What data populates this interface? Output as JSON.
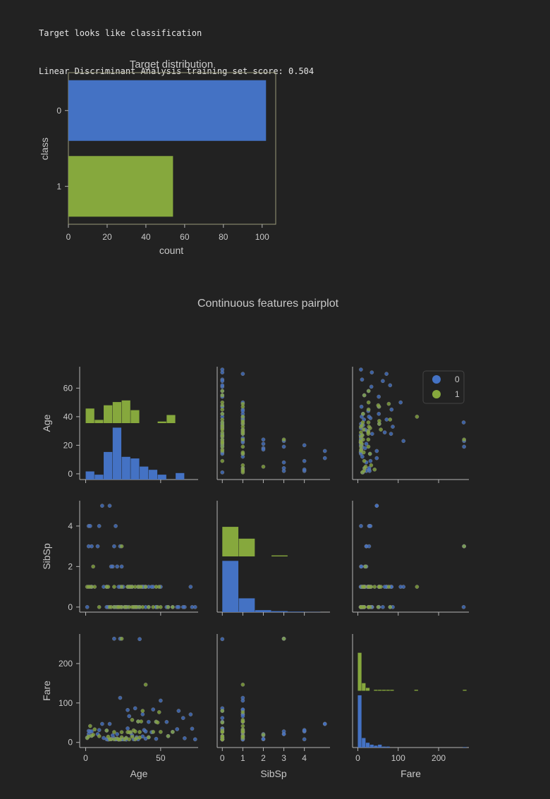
{
  "console": {
    "line1": "Target looks like classification",
    "line2": "Linear Discriminant Analysis training set score: 0.504"
  },
  "colors": {
    "class0": "#4472c4",
    "class1": "#86a83d",
    "axis": "#b4b4b4",
    "text": "#c8c8c8",
    "frame": "#9a9a7a",
    "background": "#222222"
  },
  "chart_data": [
    {
      "type": "bar",
      "orientation": "horizontal",
      "title": "Target distribution",
      "xlabel": "count",
      "ylabel": "class",
      "categories": [
        "0",
        "1"
      ],
      "values": [
        102,
        54
      ],
      "xlim": [
        0,
        107
      ],
      "xticks": [
        0,
        20,
        40,
        60,
        80,
        100
      ],
      "grid": false
    },
    {
      "type": "scatter",
      "title": "Continuous features pairplot",
      "variables": [
        "Age",
        "SibSp",
        "Fare"
      ],
      "legend": {
        "placement": "top-right",
        "entries": [
          "0",
          "1"
        ]
      },
      "ticks": {
        "Age": [
          0,
          20,
          40,
          60
        ],
        "Age_x": [
          0,
          50
        ],
        "SibSp": [
          0,
          2,
          4
        ],
        "SibSp_x": [
          0,
          1,
          2,
          3,
          4
        ],
        "Fare": [
          0,
          100,
          200
        ],
        "Fare_x": [
          0,
          100,
          200
        ]
      },
      "ranges": {
        "Age": [
          -4,
          75
        ],
        "SibSp": [
          -0.25,
          5.25
        ],
        "Fare": [
          -13,
          275
        ]
      },
      "histograms": {
        "Age": {
          "series": [
            {
              "name": "0",
              "edges": [
                0,
                6,
                12,
                18,
                24,
                30,
                36,
                42,
                48,
                54,
                60,
                66,
                72
              ],
              "counts": [
                5,
                3,
                17,
                32,
                14,
                13,
                8,
                6,
                3,
                0,
                4,
                0
              ]
            },
            {
              "name": "1",
              "edges": [
                0,
                6,
                12,
                18,
                24,
                30,
                36,
                42,
                48,
                54,
                60
              ],
              "counts": [
                9,
                2,
                11,
                13,
                14,
                8,
                0,
                0,
                1,
                5
              ]
            }
          ]
        },
        "SibSp": {
          "series": [
            {
              "name": "0",
              "edges": [
                0,
                0.8,
                1.6,
                2.4,
                3.2,
                4.0,
                4.8
              ],
              "counts": [
                52,
                14,
                2,
                1,
                0.5,
                0.2
              ]
            },
            {
              "name": "1",
              "edges": [
                0,
                0.8,
                1.6,
                2.4,
                3.2,
                4.0,
                4.8
              ],
              "counts": [
                30,
                18,
                0,
                1,
                0,
                0
              ]
            }
          ]
        },
        "Fare": {
          "series": [
            {
              "name": "0",
              "edges": [
                0,
                10,
                20,
                30,
                40,
                50,
                60,
                70,
                80,
                90,
                100,
                110,
                120,
                130,
                140,
                150,
                160,
                170,
                180,
                190,
                200,
                210,
                220,
                230,
                240,
                250,
                260,
                270
              ],
              "counts": [
                55,
                10,
                5,
                3,
                2,
                3,
                1,
                1,
                0,
                0,
                0,
                0,
                0,
                0,
                0,
                0,
                0,
                0,
                0,
                0,
                0,
                0,
                0,
                0,
                0,
                0,
                0.5
              ]
            },
            {
              "name": "1",
              "edges": [
                0,
                10,
                20,
                30,
                40,
                50,
                60,
                70,
                80,
                90,
                100,
                110,
                120,
                130,
                140,
                150,
                160,
                170,
                180,
                190,
                200,
                210,
                220,
                230,
                240,
                250,
                260,
                270
              ],
              "counts": [
                40,
                8,
                3,
                0,
                1,
                1,
                1,
                1,
                1,
                0,
                0,
                0,
                0,
                0,
                1,
                0,
                0,
                0,
                0,
                0,
                0,
                0,
                0,
                0,
                0,
                0,
                1
              ]
            }
          ]
        }
      },
      "points": {
        "0": [
          [
            22,
            1,
            7.25
          ],
          [
            38,
            1,
            71.3
          ],
          [
            26,
            0,
            7.9
          ],
          [
            35,
            1,
            53.1
          ],
          [
            35,
            0,
            8.05
          ],
          [
            54,
            0,
            51.9
          ],
          [
            2,
            3,
            21.1
          ],
          [
            27,
            0,
            11.1
          ],
          [
            14,
            1,
            30.1
          ],
          [
            4,
            1,
            16.7
          ],
          [
            58,
            0,
            26.6
          ],
          [
            20,
            0,
            8.05
          ],
          [
            39,
            1,
            31.3
          ],
          [
            14,
            0,
            7.85
          ],
          [
            55,
            0,
            16
          ],
          [
            2,
            4,
            29.1
          ],
          [
            31,
            1,
            18
          ],
          [
            15,
            0,
            7.2
          ],
          [
            34,
            0,
            13
          ],
          [
            28,
            0,
            35.5
          ],
          [
            8,
            3,
            21.1
          ],
          [
            38,
            1,
            15.2
          ],
          [
            19,
            3,
            263
          ],
          [
            40,
            0,
            27.7
          ],
          [
            66,
            0,
            10.5
          ],
          [
            28,
            1,
            82.2
          ],
          [
            42,
            1,
            52
          ],
          [
            21,
            0,
            8.05
          ],
          [
            18,
            2,
            18
          ],
          [
            40,
            1,
            9.5
          ],
          [
            27,
            0,
            7.2
          ],
          [
            3,
            4,
            27.9
          ],
          [
            19,
            0,
            10.5
          ],
          [
            21,
            2,
            21
          ],
          [
            45,
            1,
            83.5
          ],
          [
            4,
            3,
            27.9
          ],
          [
            32,
            0,
            7.9
          ],
          [
            47,
            0,
            9
          ],
          [
            23,
            3,
            263
          ],
          [
            24,
            0,
            7.9
          ],
          [
            65,
            0,
            61.9
          ],
          [
            70,
            1,
            71
          ],
          [
            71,
            0,
            34.7
          ],
          [
            73,
            0,
            7.75
          ],
          [
            16,
            5,
            46.9
          ],
          [
            9,
            4,
            31.3
          ],
          [
            11,
            5,
            46.9
          ],
          [
            61,
            0,
            33.5
          ],
          [
            44,
            1,
            26
          ],
          [
            50,
            1,
            106
          ],
          [
            24,
            2,
            8.05
          ],
          [
            30,
            1,
            24
          ],
          [
            42,
            0,
            13
          ],
          [
            62,
            0,
            80
          ],
          [
            33,
            0,
            86.5
          ],
          [
            47,
            0,
            52
          ],
          [
            23,
            1,
            113
          ],
          [
            20,
            4,
            7.9
          ],
          [
            29,
            1,
            66.6
          ],
          [
            36,
            0,
            262
          ],
          [
            17,
            2,
            8.65
          ],
          [
            1,
            0,
            12.5
          ],
          [
            12,
            1,
            11.2
          ],
          [
            25,
            1,
            7.8
          ]
        ],
        "1": [
          [
            26,
            0,
            7.9
          ],
          [
            35,
            1,
            53.1
          ],
          [
            27,
            0,
            11.1
          ],
          [
            14,
            1,
            30.1
          ],
          [
            4,
            1,
            16.7
          ],
          [
            58,
            0,
            26.6
          ],
          [
            55,
            0,
            16
          ],
          [
            24,
            0,
            13
          ],
          [
            38,
            0,
            80
          ],
          [
            49,
            1,
            76.7
          ],
          [
            29,
            0,
            7.75
          ],
          [
            22,
            0,
            7.25
          ],
          [
            5,
            2,
            19.3
          ],
          [
            17,
            0,
            8.05
          ],
          [
            32,
            0,
            30.5
          ],
          [
            30,
            1,
            26
          ],
          [
            19,
            0,
            7.9
          ],
          [
            23,
            0,
            7.25
          ],
          [
            28,
            1,
            26
          ],
          [
            47,
            1,
            52.6
          ],
          [
            36,
            1,
            26.3
          ],
          [
            50,
            0,
            26.6
          ],
          [
            3,
            1,
            41.6
          ],
          [
            45,
            0,
            26.55
          ],
          [
            1,
            1,
            11.1
          ],
          [
            6,
            1,
            33
          ],
          [
            42,
            0,
            13
          ],
          [
            24,
            1,
            26
          ],
          [
            33,
            0,
            7.75
          ],
          [
            34,
            0,
            10.5
          ],
          [
            16,
            0,
            7.75
          ],
          [
            29,
            1,
            26
          ],
          [
            36,
            0,
            12.3
          ],
          [
            19,
            1,
            26.3
          ],
          [
            21,
            0,
            9.8
          ],
          [
            24,
            3,
            263
          ],
          [
            48,
            0,
            50.5
          ],
          [
            31,
            1,
            57
          ],
          [
            2,
            1,
            15.2
          ],
          [
            22,
            0,
            7.5
          ],
          [
            40,
            1,
            146.5
          ],
          [
            9,
            0,
            15.9
          ],
          [
            37,
            1,
            53.1
          ],
          [
            15,
            1,
            14.5
          ],
          [
            31,
            0,
            14.5
          ],
          [
            33,
            1,
            27.7
          ]
        ]
      }
    }
  ]
}
